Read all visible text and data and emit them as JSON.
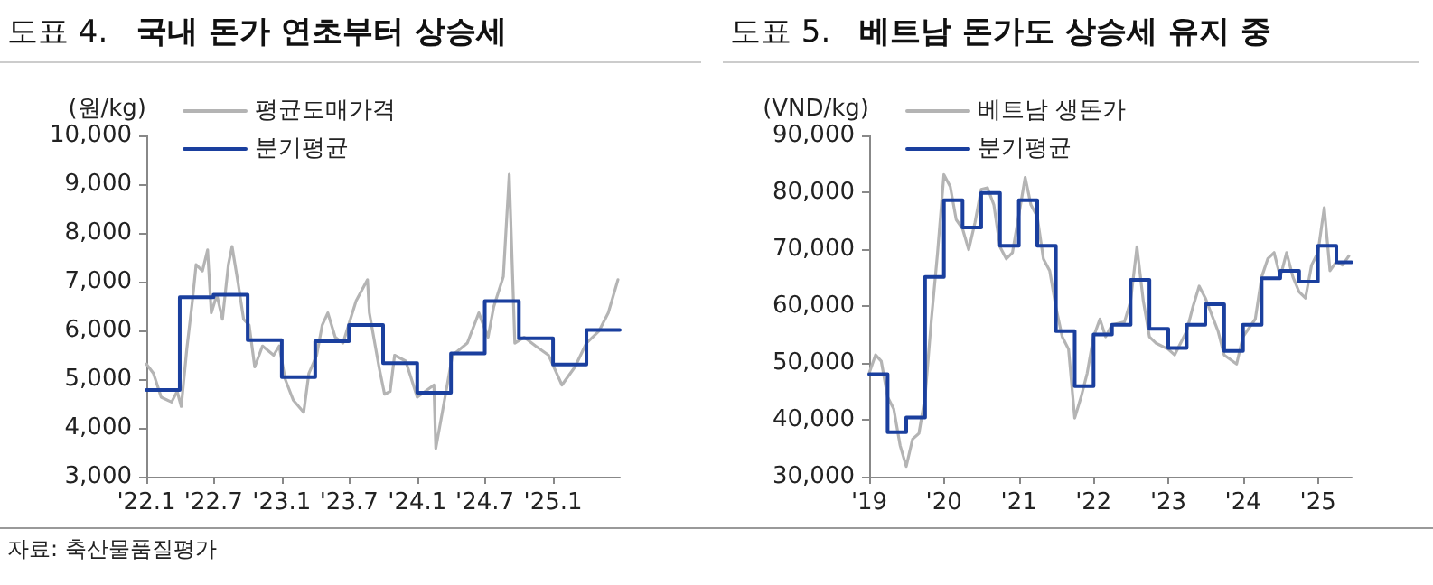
{
  "chart_data": [
    {
      "type": "line",
      "title": "도표 4.",
      "subtitle": "국내 돈가 연초부터 상승세",
      "ylabel": "(원/kg)",
      "annotations": [
        "자료: 축산물품질평가"
      ],
      "xlim": [
        "2022-01-01",
        "2025-06-30"
      ],
      "xticks": [
        {
          "value": "2022-01",
          "label": "'22.1"
        },
        {
          "value": "2022-07",
          "label": "'22.7"
        },
        {
          "value": "2023-01",
          "label": "'23.1"
        },
        {
          "value": "2023-07",
          "label": "'23.7"
        },
        {
          "value": "2024-01",
          "label": "'24.1"
        },
        {
          "value": "2024-07",
          "label": "'24.7"
        },
        {
          "value": "2025-01",
          "label": "'25.1"
        }
      ],
      "ylim": [
        3000,
        10000
      ],
      "yticks": [
        {
          "value": 3000,
          "label": "3,000"
        },
        {
          "value": 4000,
          "label": "4,000"
        },
        {
          "value": 5000,
          "label": "5,000"
        },
        {
          "value": 6000,
          "label": "6,000"
        },
        {
          "value": 7000,
          "label": "7,000"
        },
        {
          "value": 8000,
          "label": "8,000"
        },
        {
          "value": 9000,
          "label": "9,000"
        },
        {
          "value": 10000,
          "label": "10,000"
        }
      ],
      "grid": false,
      "legend": "top left",
      "marker": "none",
      "line_style": "solid",
      "series": [
        {
          "name": "평균도매가격",
          "color": "#b4b4b4",
          "x": [
            "2022-01-01",
            "2022-01-20",
            "2022-02-10",
            "2022-03-10",
            "2022-03-25",
            "2022-04-05",
            "2022-04-20",
            "2022-05-05",
            "2022-05-15",
            "2022-06-01",
            "2022-06-15",
            "2022-06-25",
            "2022-07-10",
            "2022-07-25",
            "2022-08-10",
            "2022-08-20",
            "2022-09-05",
            "2022-09-20",
            "2022-10-05",
            "2022-10-20",
            "2022-11-10",
            "2022-12-10",
            "2022-12-25",
            "2023-01-10",
            "2023-02-01",
            "2023-03-01",
            "2023-03-15",
            "2023-04-05",
            "2023-04-20",
            "2023-05-05",
            "2023-05-25",
            "2023-06-15",
            "2023-07-05",
            "2023-07-20",
            "2023-08-20",
            "2023-08-25",
            "2023-09-20",
            "2023-10-05",
            "2023-10-20",
            "2023-11-01",
            "2023-12-01",
            "2024-01-01",
            "2024-02-15",
            "2024-02-20",
            "2024-03-10",
            "2024-04-05",
            "2024-05-15",
            "2024-06-15",
            "2024-07-10",
            "2024-07-25",
            "2024-08-20",
            "2024-09-05",
            "2024-09-20",
            "2024-10-15",
            "2024-11-15",
            "2024-12-20",
            "2025-01-25",
            "2025-03-01",
            "2025-04-01",
            "2025-05-05",
            "2025-05-30",
            "2025-06-25"
          ],
          "values": [
            5310,
            5120,
            4630,
            4530,
            4750,
            4440,
            5620,
            6600,
            7350,
            7220,
            7650,
            6360,
            6730,
            6230,
            7350,
            7720,
            6980,
            6230,
            6110,
            5250,
            5680,
            5490,
            5680,
            5000,
            4570,
            4320,
            5120,
            5490,
            6110,
            6360,
            5860,
            5740,
            6230,
            6600,
            7040,
            6360,
            5250,
            4690,
            4750,
            5490,
            5370,
            4630,
            4880,
            3580,
            4380,
            5490,
            5740,
            6360,
            5860,
            6480,
            7100,
            9200,
            5740,
            5860,
            5680,
            5490,
            4880,
            5250,
            5740,
            5990,
            6360,
            7040
          ]
        },
        {
          "name": "분기평균",
          "type": "step",
          "color": "#1a3f9e",
          "x": [
            "2022-01-01",
            "2022-04-01",
            "2022-07-01",
            "2022-10-01",
            "2023-01-01",
            "2023-04-01",
            "2023-07-01",
            "2023-10-01",
            "2024-01-01",
            "2024-04-01",
            "2024-07-01",
            "2024-10-01",
            "2025-01-01",
            "2025-04-01",
            "2025-06-30"
          ],
          "values": [
            4780,
            6680,
            6730,
            5800,
            5040,
            5780,
            6110,
            5330,
            4720,
            5530,
            6600,
            5840,
            5300,
            6010,
            6010
          ]
        }
      ]
    },
    {
      "type": "line",
      "title": "도표 5.",
      "subtitle": "베트남 돈가도 상승세 유지 중",
      "ylabel": "(VND/kg)",
      "xlim": [
        "2019-01-01",
        "2025-06-15"
      ],
      "xticks": [
        {
          "value": "2019",
          "label": "'19"
        },
        {
          "value": "2020",
          "label": "'20"
        },
        {
          "value": "2021",
          "label": "'21"
        },
        {
          "value": "2022",
          "label": "'22"
        },
        {
          "value": "2023",
          "label": "'23"
        },
        {
          "value": "2024",
          "label": "'24"
        },
        {
          "value": "2025",
          "label": "'25"
        }
      ],
      "ylim": [
        30000,
        90000
      ],
      "yticks": [
        {
          "value": 30000,
          "label": "30,000"
        },
        {
          "value": 40000,
          "label": "40,000"
        },
        {
          "value": 50000,
          "label": "50,000"
        },
        {
          "value": 60000,
          "label": "60,000"
        },
        {
          "value": 70000,
          "label": "70,000"
        },
        {
          "value": 80000,
          "label": "80,000"
        },
        {
          "value": 90000,
          "label": "90,000"
        }
      ],
      "grid": false,
      "legend": "top left",
      "marker": "none",
      "line_style": "solid",
      "series": [
        {
          "name": "베트남 생돈가",
          "color": "#b4b4b4",
          "x": [
            "2019-01",
            "2019-02",
            "2019-03",
            "2019-04",
            "2019-05",
            "2019-06",
            "2019-07",
            "2019-08",
            "2019-09",
            "2019-10",
            "2019-11",
            "2019-12",
            "2020-01",
            "2020-02",
            "2020-03",
            "2020-04",
            "2020-05",
            "2020-06",
            "2020-07",
            "2020-08",
            "2020-09",
            "2020-10",
            "2020-11",
            "2020-12",
            "2021-02",
            "2021-03",
            "2021-04",
            "2021-05",
            "2021-06",
            "2021-07",
            "2021-08",
            "2021-09",
            "2021-10",
            "2021-11",
            "2021-12",
            "2022-01",
            "2022-02",
            "2022-03",
            "2022-04",
            "2022-06",
            "2022-07",
            "2022-08",
            "2022-09",
            "2022-10",
            "2022-11",
            "2023-01",
            "2023-02",
            "2023-04",
            "2023-05",
            "2023-06",
            "2023-07",
            "2023-09",
            "2023-10",
            "2023-12",
            "2024-01",
            "2024-03",
            "2024-04",
            "2024-05",
            "2024-06",
            "2024-07",
            "2024-08",
            "2024-09",
            "2024-10",
            "2024-11",
            "2024-12",
            "2025-01",
            "2025-02",
            "2025-03",
            "2025-04",
            "2025-05",
            "2025-06"
          ],
          "values": [
            48200,
            51400,
            50300,
            44000,
            41900,
            35500,
            31800,
            36600,
            37600,
            44000,
            57700,
            69400,
            83100,
            81000,
            75200,
            73600,
            69900,
            74700,
            80500,
            80800,
            77800,
            70400,
            68300,
            69400,
            82600,
            77800,
            75700,
            68300,
            66200,
            59800,
            54600,
            52400,
            40300,
            44000,
            48200,
            54600,
            57700,
            54600,
            56700,
            57200,
            60900,
            70400,
            60900,
            54600,
            53500,
            52400,
            51400,
            55600,
            59800,
            63500,
            61400,
            55600,
            51400,
            49800,
            54600,
            57700,
            65100,
            68300,
            69400,
            65100,
            69400,
            65100,
            62500,
            61400,
            67200,
            69400,
            77300,
            66200,
            67800,
            67200,
            68800
          ]
        },
        {
          "name": "분기평균",
          "type": "step",
          "color": "#1a3f9e",
          "x": [
            "2019-01-01",
            "2019-04-01",
            "2019-07-01",
            "2019-10-01",
            "2020-01-01",
            "2020-04-01",
            "2020-07-01",
            "2020-10-01",
            "2021-01-01",
            "2021-04-01",
            "2021-07-01",
            "2021-10-01",
            "2022-01-01",
            "2022-04-01",
            "2022-07-01",
            "2022-10-01",
            "2023-01-01",
            "2023-04-01",
            "2023-07-01",
            "2023-10-01",
            "2024-01-01",
            "2024-04-01",
            "2024-07-01",
            "2024-10-01",
            "2025-01-01",
            "2025-04-01",
            "2025-06-15"
          ],
          "values": [
            48000,
            37800,
            40400,
            65100,
            78600,
            73800,
            79900,
            70600,
            78600,
            70600,
            55600,
            45900,
            55000,
            56700,
            64600,
            56000,
            52600,
            56700,
            60300,
            52100,
            56700,
            64900,
            66200,
            64300,
            70600,
            67700,
            67700
          ]
        }
      ]
    }
  ]
}
